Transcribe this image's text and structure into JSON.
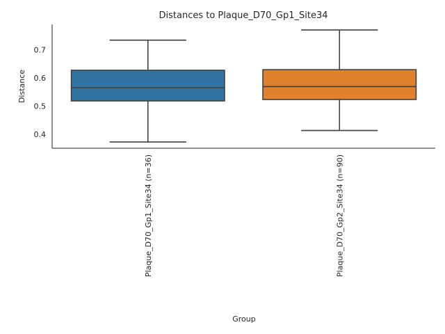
{
  "chart_data": {
    "type": "box",
    "title": "Distances to Plaque_D70_Gp1_Site34",
    "xlabel": "Group",
    "ylabel": "Distance",
    "ylim": [
      0.35,
      0.79
    ],
    "yticks": [
      "0.4",
      "0.5",
      "0.6",
      "0.7"
    ],
    "grid": false,
    "categories": [
      "Plaque_D70_Gp1_Site34 (n=36)",
      "Plaque_D70_Gp2_Site34 (n=90)"
    ],
    "boxes": [
      {
        "whisker_low": 0.372,
        "q1": 0.518,
        "median": 0.565,
        "q3": 0.627,
        "whisker_high": 0.734,
        "color": "#3274a1"
      },
      {
        "whisker_low": 0.413,
        "q1": 0.523,
        "median": 0.569,
        "q3": 0.629,
        "whisker_high": 0.77,
        "color": "#e1812c"
      }
    ],
    "line_color": "#3f3f3f"
  }
}
